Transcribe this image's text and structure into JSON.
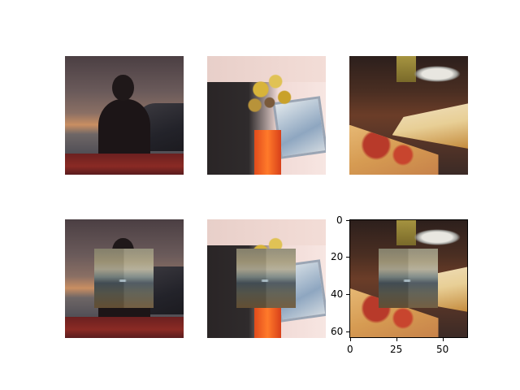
{
  "figure": {
    "panels": [
      {
        "id": "top-1",
        "scene": "silhouette-sunset",
        "masked": false
      },
      {
        "id": "top-2",
        "scene": "flowers-vase",
        "masked": false
      },
      {
        "id": "top-3",
        "scene": "pie-pizza",
        "masked": false
      },
      {
        "id": "bottom-1",
        "scene": "silhouette-sunset",
        "masked": true
      },
      {
        "id": "bottom-2",
        "scene": "flowers-vase",
        "masked": true
      },
      {
        "id": "bottom-3",
        "scene": "pie-pizza",
        "masked": true
      }
    ],
    "axes": {
      "x_ticks": [
        "0",
        "25",
        "50"
      ],
      "y_ticks": [
        "0",
        "20",
        "40",
        "60"
      ]
    }
  }
}
